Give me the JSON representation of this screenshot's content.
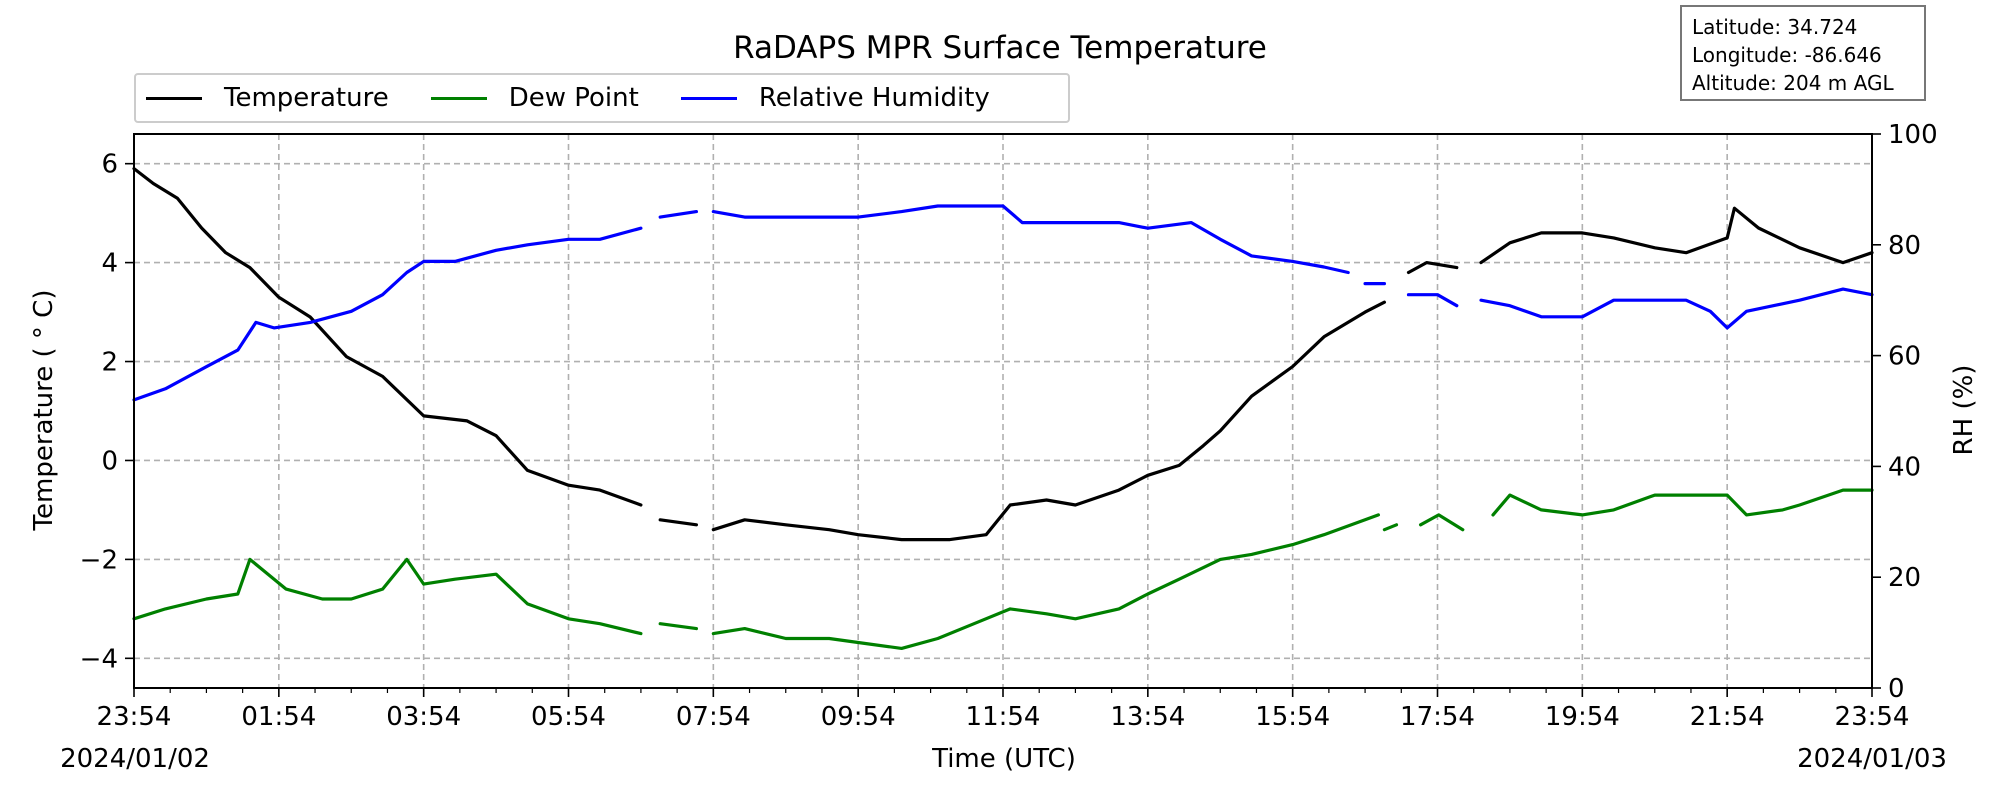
{
  "chart_data": {
    "type": "line",
    "title": "RaDAPS MPR Surface Temperature",
    "xlabel": "Time (UTC)",
    "ylabel": "Temperature ($^\\circ$C)",
    "ylabel_display": "Temperature ( ° C)",
    "y2label": "RH (%)",
    "ylim": [
      -4.6,
      6.6
    ],
    "y2lim": [
      0,
      100
    ],
    "xlim": [
      "2024-01-02T23:54",
      "2024-01-03T23:54"
    ],
    "x_tick_labels": [
      "23:54",
      "01:54",
      "03:54",
      "05:54",
      "07:54",
      "09:54",
      "11:54",
      "13:54",
      "15:54",
      "17:54",
      "19:54",
      "21:54",
      "23:54"
    ],
    "x_date_labels": {
      "start": "2024/01/02",
      "end": "2024/01/03"
    },
    "y_tick_labels": [
      "−4",
      "−2",
      "0",
      "2",
      "4",
      "6"
    ],
    "y2_tick_labels": [
      "0",
      "20",
      "40",
      "60",
      "80",
      "100"
    ],
    "grid": true,
    "legend": "top-left, above plot",
    "info": [
      "Latitude: 34.724",
      "Longitude: -86.646",
      "Altitude: 204 m AGL"
    ],
    "series": [
      {
        "name": "Temperature",
        "axis": "left",
        "color": "#000000",
        "segments": [
          [
            [
              "2024-01-02T23:54",
              5.9
            ],
            [
              "2024-01-03T00:10",
              5.6
            ],
            [
              "2024-01-03T00:30",
              5.3
            ],
            [
              "2024-01-03T00:50",
              4.7
            ],
            [
              "2024-01-03T01:10",
              4.2
            ],
            [
              "2024-01-03T01:30",
              3.9
            ],
            [
              "2024-01-03T01:54",
              3.3
            ],
            [
              "2024-01-03T02:20",
              2.9
            ],
            [
              "2024-01-03T02:50",
              2.1
            ],
            [
              "2024-01-03T03:20",
              1.7
            ],
            [
              "2024-01-03T03:54",
              0.9
            ],
            [
              "2024-01-03T04:30",
              0.8
            ],
            [
              "2024-01-03T04:54",
              0.5
            ],
            [
              "2024-01-03T05:20",
              -0.2
            ],
            [
              "2024-01-03T05:54",
              -0.5
            ],
            [
              "2024-01-03T06:20",
              -0.6
            ],
            [
              "2024-01-03T06:54",
              -0.9
            ]
          ],
          [
            [
              "2024-01-03T07:10",
              -1.2
            ],
            [
              "2024-01-03T07:40",
              -1.3
            ]
          ],
          [
            [
              "2024-01-03T07:54",
              -1.4
            ],
            [
              "2024-01-03T08:20",
              -1.2
            ],
            [
              "2024-01-03T08:54",
              -1.3
            ],
            [
              "2024-01-03T09:30",
              -1.4
            ],
            [
              "2024-01-03T09:54",
              -1.5
            ],
            [
              "2024-01-03T10:30",
              -1.6
            ],
            [
              "2024-01-03T11:10",
              -1.6
            ],
            [
              "2024-01-03T11:40",
              -1.5
            ],
            [
              "2024-01-03T12:00",
              -0.9
            ],
            [
              "2024-01-03T12:30",
              -0.8
            ],
            [
              "2024-01-03T12:54",
              -0.9
            ],
            [
              "2024-01-03T13:30",
              -0.6
            ],
            [
              "2024-01-03T13:54",
              -0.3
            ],
            [
              "2024-01-03T14:20",
              -0.1
            ],
            [
              "2024-01-03T14:40",
              0.3
            ],
            [
              "2024-01-03T14:54",
              0.6
            ],
            [
              "2024-01-03T15:20",
              1.3
            ],
            [
              "2024-01-03T15:54",
              1.9
            ],
            [
              "2024-01-03T16:20",
              2.5
            ],
            [
              "2024-01-03T16:54",
              3.0
            ],
            [
              "2024-01-03T17:10",
              3.2
            ]
          ],
          [
            [
              "2024-01-03T17:30",
              3.8
            ],
            [
              "2024-01-03T17:45",
              4.0
            ],
            [
              "2024-01-03T18:10",
              3.9
            ]
          ],
          [
            [
              "2024-01-03T18:30",
              4.0
            ],
            [
              "2024-01-03T18:54",
              4.4
            ],
            [
              "2024-01-03T19:20",
              4.6
            ],
            [
              "2024-01-03T19:54",
              4.6
            ],
            [
              "2024-01-03T20:20",
              4.5
            ],
            [
              "2024-01-03T20:54",
              4.3
            ],
            [
              "2024-01-03T21:20",
              4.2
            ],
            [
              "2024-01-03T21:54",
              4.5
            ],
            [
              "2024-01-03T22:00",
              5.1
            ],
            [
              "2024-01-03T22:20",
              4.7
            ],
            [
              "2024-01-03T22:54",
              4.3
            ],
            [
              "2024-01-03T23:30",
              4.0
            ],
            [
              "2024-01-03T23:54",
              4.2
            ]
          ]
        ]
      },
      {
        "name": "Dew Point",
        "axis": "left",
        "color": "#008000",
        "segments": [
          [
            [
              "2024-01-02T23:54",
              -3.2
            ],
            [
              "2024-01-03T00:20",
              -3.0
            ],
            [
              "2024-01-03T00:54",
              -2.8
            ],
            [
              "2024-01-03T01:20",
              -2.7
            ],
            [
              "2024-01-03T01:30",
              -2.0
            ],
            [
              "2024-01-03T01:45",
              -2.3
            ],
            [
              "2024-01-03T02:00",
              -2.6
            ],
            [
              "2024-01-03T02:30",
              -2.8
            ],
            [
              "2024-01-03T02:54",
              -2.8
            ],
            [
              "2024-01-03T03:20",
              -2.6
            ],
            [
              "2024-01-03T03:40",
              -2.0
            ],
            [
              "2024-01-03T03:54",
              -2.5
            ],
            [
              "2024-01-03T04:20",
              -2.4
            ],
            [
              "2024-01-03T04:54",
              -2.3
            ],
            [
              "2024-01-03T05:20",
              -2.9
            ],
            [
              "2024-01-03T05:54",
              -3.2
            ],
            [
              "2024-01-03T06:20",
              -3.3
            ],
            [
              "2024-01-03T06:54",
              -3.5
            ]
          ],
          [
            [
              "2024-01-03T07:10",
              -3.3
            ],
            [
              "2024-01-03T07:40",
              -3.4
            ]
          ],
          [
            [
              "2024-01-03T07:54",
              -3.5
            ],
            [
              "2024-01-03T08:20",
              -3.4
            ],
            [
              "2024-01-03T08:54",
              -3.6
            ],
            [
              "2024-01-03T09:30",
              -3.6
            ],
            [
              "2024-01-03T10:00",
              -3.7
            ],
            [
              "2024-01-03T10:30",
              -3.8
            ],
            [
              "2024-01-03T11:00",
              -3.6
            ],
            [
              "2024-01-03T11:30",
              -3.3
            ],
            [
              "2024-01-03T12:00",
              -3.0
            ],
            [
              "2024-01-03T12:30",
              -3.1
            ],
            [
              "2024-01-03T12:54",
              -3.2
            ],
            [
              "2024-01-03T13:30",
              -3.0
            ],
            [
              "2024-01-03T13:54",
              -2.7
            ],
            [
              "2024-01-03T14:20",
              -2.4
            ],
            [
              "2024-01-03T14:54",
              -2.0
            ],
            [
              "2024-01-03T15:20",
              -1.9
            ],
            [
              "2024-01-03T15:54",
              -1.7
            ],
            [
              "2024-01-03T16:20",
              -1.5
            ],
            [
              "2024-01-03T16:54",
              -1.2
            ],
            [
              "2024-01-03T17:05",
              -1.1
            ]
          ],
          [
            [
              "2024-01-03T17:10",
              -1.4
            ],
            [
              "2024-01-03T17:20",
              -1.3
            ]
          ],
          [
            [
              "2024-01-03T17:40",
              -1.3
            ],
            [
              "2024-01-03T17:55",
              -1.1
            ],
            [
              "2024-01-03T18:15",
              -1.4
            ]
          ],
          [
            [
              "2024-01-03T18:40",
              -1.1
            ],
            [
              "2024-01-03T18:54",
              -0.7
            ],
            [
              "2024-01-03T19:20",
              -1.0
            ],
            [
              "2024-01-03T19:54",
              -1.1
            ],
            [
              "2024-01-03T20:20",
              -1.0
            ],
            [
              "2024-01-03T20:54",
              -0.7
            ],
            [
              "2024-01-03T21:20",
              -0.7
            ],
            [
              "2024-01-03T21:54",
              -0.7
            ],
            [
              "2024-01-03T22:10",
              -1.1
            ],
            [
              "2024-01-03T22:40",
              -1.0
            ],
            [
              "2024-01-03T22:54",
              -0.9
            ],
            [
              "2024-01-03T23:30",
              -0.6
            ],
            [
              "2024-01-03T23:54",
              -0.6
            ]
          ]
        ]
      },
      {
        "name": "Relative Humidity",
        "axis": "right",
        "color": "#0000ff",
        "segments": [
          [
            [
              "2024-01-02T23:54",
              52
            ],
            [
              "2024-01-03T00:20",
              54
            ],
            [
              "2024-01-03T00:54",
              58
            ],
            [
              "2024-01-03T01:20",
              61
            ],
            [
              "2024-01-03T01:35",
              66
            ],
            [
              "2024-01-03T01:50",
              65
            ],
            [
              "2024-01-03T02:20",
              66
            ],
            [
              "2024-01-03T02:54",
              68
            ],
            [
              "2024-01-03T03:20",
              71
            ],
            [
              "2024-01-03T03:40",
              75
            ],
            [
              "2024-01-03T03:54",
              77
            ],
            [
              "2024-01-03T04:20",
              77
            ],
            [
              "2024-01-03T04:54",
              79
            ],
            [
              "2024-01-03T05:20",
              80
            ],
            [
              "2024-01-03T05:54",
              81
            ],
            [
              "2024-01-03T06:20",
              81
            ],
            [
              "2024-01-03T06:54",
              83
            ]
          ],
          [
            [
              "2024-01-03T07:10",
              85
            ],
            [
              "2024-01-03T07:40",
              86
            ]
          ],
          [
            [
              "2024-01-03T07:54",
              86
            ],
            [
              "2024-01-03T08:20",
              85
            ],
            [
              "2024-01-03T08:54",
              85
            ],
            [
              "2024-01-03T09:30",
              85
            ],
            [
              "2024-01-03T09:54",
              85
            ],
            [
              "2024-01-03T10:30",
              86
            ],
            [
              "2024-01-03T11:00",
              87
            ],
            [
              "2024-01-03T11:30",
              87
            ],
            [
              "2024-01-03T11:54",
              87
            ],
            [
              "2024-01-03T12:10",
              84
            ],
            [
              "2024-01-03T12:54",
              84
            ],
            [
              "2024-01-03T13:30",
              84
            ],
            [
              "2024-01-03T13:54",
              83
            ],
            [
              "2024-01-03T14:30",
              84
            ],
            [
              "2024-01-03T14:54",
              81
            ],
            [
              "2024-01-03T15:20",
              78
            ],
            [
              "2024-01-03T15:54",
              77
            ],
            [
              "2024-01-03T16:20",
              76
            ],
            [
              "2024-01-03T16:40",
              75
            ]
          ],
          [
            [
              "2024-01-03T16:54",
              73
            ],
            [
              "2024-01-03T17:10",
              73
            ]
          ],
          [
            [
              "2024-01-03T17:30",
              71
            ],
            [
              "2024-01-03T17:54",
              71
            ],
            [
              "2024-01-03T18:10",
              69
            ]
          ],
          [
            [
              "2024-01-03T18:30",
              70
            ],
            [
              "2024-01-03T18:54",
              69
            ],
            [
              "2024-01-03T19:20",
              67
            ],
            [
              "2024-01-03T19:54",
              67
            ],
            [
              "2024-01-03T20:20",
              70
            ],
            [
              "2024-01-03T20:54",
              70
            ],
            [
              "2024-01-03T21:20",
              70
            ],
            [
              "2024-01-03T21:40",
              68
            ],
            [
              "2024-01-03T21:54",
              65
            ],
            [
              "2024-01-03T22:10",
              68
            ],
            [
              "2024-01-03T22:54",
              70
            ],
            [
              "2024-01-03T23:30",
              72
            ],
            [
              "2024-01-03T23:54",
              71
            ]
          ]
        ]
      }
    ]
  }
}
